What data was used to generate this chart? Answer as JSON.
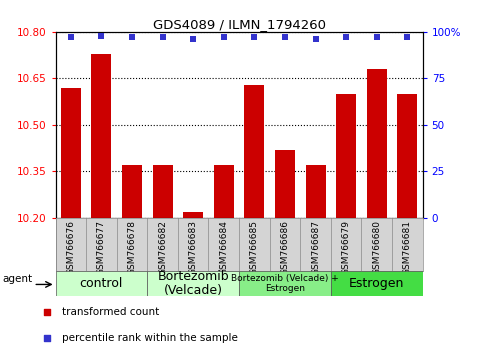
{
  "title": "GDS4089 / ILMN_1794260",
  "samples": [
    "GSM766676",
    "GSM766677",
    "GSM766678",
    "GSM766682",
    "GSM766683",
    "GSM766684",
    "GSM766685",
    "GSM766686",
    "GSM766687",
    "GSM766679",
    "GSM766680",
    "GSM766681"
  ],
  "transformed_counts": [
    10.62,
    10.73,
    10.37,
    10.37,
    10.22,
    10.37,
    10.63,
    10.42,
    10.37,
    10.6,
    10.68,
    10.6
  ],
  "percentile_ranks": [
    97,
    98,
    97,
    97,
    96,
    97,
    97,
    97,
    96,
    97,
    97,
    97
  ],
  "ylim_left": [
    10.2,
    10.8
  ],
  "ylim_right": [
    0,
    100
  ],
  "yticks_left": [
    10.2,
    10.35,
    10.5,
    10.65,
    10.8
  ],
  "yticks_right": [
    0,
    25,
    50,
    75,
    100
  ],
  "bar_color": "#CC0000",
  "dot_color": "#3333CC",
  "groups": [
    {
      "label": "control",
      "start": 0,
      "end": 3,
      "color": "#ccffcc"
    },
    {
      "label": "Bortezomib\n(Velcade)",
      "start": 3,
      "end": 6,
      "color": "#ccffcc"
    },
    {
      "label": "Bortezomib (Velcade) +\nEstrogen",
      "start": 6,
      "end": 9,
      "color": "#88ee88"
    },
    {
      "label": "Estrogen",
      "start": 9,
      "end": 12,
      "color": "#44dd44"
    }
  ],
  "group_label_fontsizes": [
    9,
    9,
    6.5,
    9
  ],
  "legend_items": [
    {
      "label": "transformed count",
      "color": "#CC0000"
    },
    {
      "label": "percentile rank within the sample",
      "color": "#3333CC"
    }
  ],
  "agent_label": "agent"
}
